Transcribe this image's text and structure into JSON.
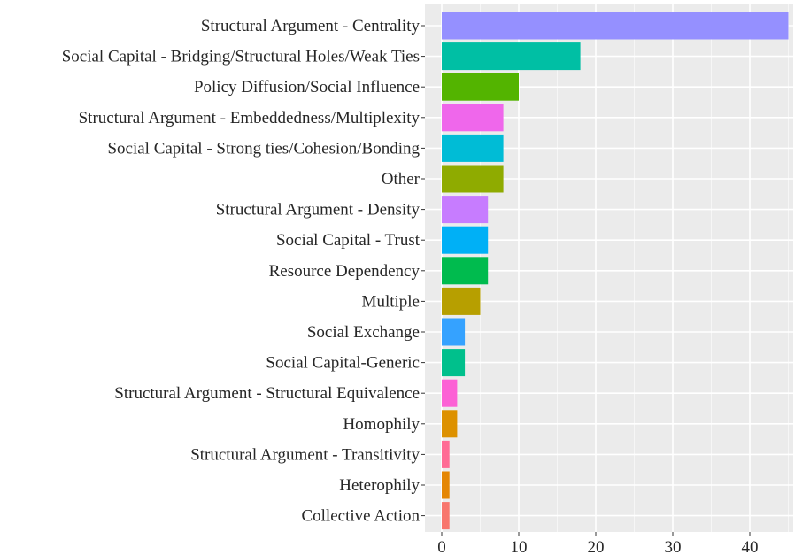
{
  "chart_data": {
    "type": "bar",
    "orientation": "horizontal",
    "title": "",
    "xlabel": "",
    "ylabel": "",
    "xlim": [
      0,
      45.5
    ],
    "x_ticks": [
      0,
      10,
      20,
      30,
      40
    ],
    "x_tick_labels": [
      "0",
      "10",
      "20",
      "30",
      "40"
    ],
    "grid": true,
    "legend": "none",
    "panel_background": "#ebebeb",
    "grid_color": "#ffffff",
    "categories": [
      "Structural Argument - Centrality",
      "Social Capital - Bridging/Structural Holes/Weak Ties",
      "Policy Diffusion/Social Influence",
      "Structural Argument - Embeddedness/Multiplexity",
      "Social Capital - Strong ties/Cohesion/Bonding",
      "Other",
      "Structural Argument - Density",
      "Social Capital - Trust",
      "Resource Dependency",
      "Multiple",
      "Social Exchange",
      "Social Capital-Generic",
      "Structural Argument - Structural Equivalence",
      "Homophily",
      "Structural Argument - Transitivity",
      "Heterophily",
      "Collective Action"
    ],
    "values": [
      45,
      18,
      10,
      8,
      8,
      8,
      6,
      6,
      6,
      5,
      3,
      3,
      2,
      2,
      1,
      1,
      1
    ],
    "colors": [
      "#9590ff",
      "#00bfa4",
      "#53b400",
      "#ef67eb",
      "#00bcd6",
      "#8fab00",
      "#c77cff",
      "#00b0f6",
      "#00bb4e",
      "#b79f00",
      "#35a2ff",
      "#00c08c",
      "#fc61d5",
      "#dd9100",
      "#ff6b95",
      "#e58704",
      "#f8766d"
    ]
  }
}
